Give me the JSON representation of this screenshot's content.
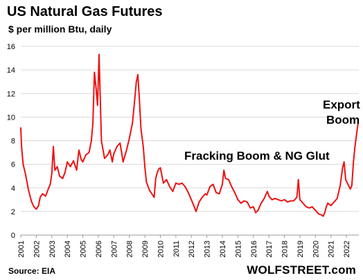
{
  "header": {
    "title": "US Natural Gas Futures",
    "subtitle": "$ per million Btu, daily"
  },
  "annotations": {
    "fracking": "Fracking Boom & NG Glut",
    "export_line1": "Export",
    "export_line2": "Boom"
  },
  "footer": {
    "source": "Source: EIA",
    "brand": "WOLFSTREET.com"
  },
  "colors": {
    "line": "#ee1111",
    "grid": "#d9d9d9",
    "axis": "#999999"
  },
  "chart_data": {
    "type": "line",
    "title": "US Natural Gas Futures",
    "subtitle": "$ per million Btu, daily",
    "xlabel": "",
    "ylabel": "",
    "xlim": [
      2001,
      2022.8
    ],
    "ylim": [
      0,
      16
    ],
    "yticks": [
      0,
      2,
      4,
      6,
      8,
      10,
      12,
      14,
      16
    ],
    "xticks": [
      "2001",
      "2002",
      "2003",
      "2004",
      "2005",
      "2006",
      "2007",
      "2008",
      "2009",
      "2010",
      "2011",
      "2012",
      "2013",
      "2014",
      "2015",
      "2016",
      "2017",
      "2018",
      "2019",
      "2020",
      "2021",
      "2022"
    ],
    "grid": "horizontal",
    "series": [
      {
        "color": "#ee1111",
        "x": [
          2001.0,
          2001.05,
          2001.15,
          2001.3,
          2001.5,
          2001.7,
          2001.85,
          2002.0,
          2002.15,
          2002.25,
          2002.4,
          2002.6,
          2002.8,
          2002.9,
          2003.0,
          2003.1,
          2003.2,
          2003.35,
          2003.5,
          2003.7,
          2003.85,
          2004.0,
          2004.2,
          2004.4,
          2004.6,
          2004.75,
          2004.9,
          2005.0,
          2005.2,
          2005.4,
          2005.55,
          2005.65,
          2005.75,
          2005.85,
          2005.95,
          2006.05,
          2006.2,
          2006.4,
          2006.6,
          2006.75,
          2006.9,
          2007.0,
          2007.2,
          2007.4,
          2007.6,
          2007.8,
          2008.0,
          2008.2,
          2008.35,
          2008.45,
          2008.55,
          2008.65,
          2008.75,
          2008.9,
          2009.0,
          2009.1,
          2009.3,
          2009.5,
          2009.6,
          2009.7,
          2009.8,
          2009.9,
          2010.0,
          2010.2,
          2010.4,
          2010.6,
          2010.8,
          2011.0,
          2011.2,
          2011.4,
          2011.6,
          2011.8,
          2012.0,
          2012.15,
          2012.3,
          2012.5,
          2012.7,
          2012.9,
          2013.0,
          2013.2,
          2013.4,
          2013.6,
          2013.8,
          2014.0,
          2014.1,
          2014.2,
          2014.4,
          2014.6,
          2014.8,
          2015.0,
          2015.2,
          2015.4,
          2015.6,
          2015.8,
          2016.0,
          2016.15,
          2016.3,
          2016.5,
          2016.7,
          2016.9,
          2017.0,
          2017.2,
          2017.4,
          2017.6,
          2017.8,
          2018.0,
          2018.2,
          2018.4,
          2018.6,
          2018.8,
          2018.9,
          2019.0,
          2019.2,
          2019.4,
          2019.6,
          2019.8,
          2020.0,
          2020.2,
          2020.4,
          2020.5,
          2020.6,
          2020.7,
          2020.8,
          2021.0,
          2021.2,
          2021.4,
          2021.6,
          2021.75,
          2021.85,
          2021.95,
          2022.1,
          2022.25,
          2022.35,
          2022.45,
          2022.55,
          2022.65,
          2022.75
        ],
        "y": [
          9.1,
          7.5,
          6.0,
          5.2,
          3.8,
          2.8,
          2.4,
          2.2,
          2.5,
          3.2,
          3.5,
          3.3,
          4.0,
          4.3,
          5.2,
          7.5,
          5.5,
          5.8,
          5.0,
          4.8,
          5.3,
          6.2,
          5.8,
          6.3,
          5.5,
          7.2,
          6.4,
          6.2,
          6.8,
          7.0,
          8.0,
          9.5,
          13.8,
          12.5,
          11.0,
          15.3,
          8.0,
          6.5,
          6.8,
          7.2,
          6.2,
          6.9,
          7.5,
          7.8,
          6.2,
          7.1,
          8.2,
          9.5,
          11.5,
          13.0,
          13.6,
          11.5,
          9.0,
          7.5,
          5.8,
          4.5,
          3.8,
          3.4,
          3.2,
          4.8,
          5.3,
          5.6,
          5.7,
          4.4,
          4.7,
          4.1,
          3.7,
          4.4,
          4.3,
          4.4,
          4.1,
          3.6,
          3.0,
          2.5,
          2.0,
          2.8,
          3.2,
          3.5,
          3.4,
          4.1,
          4.3,
          3.6,
          3.5,
          4.3,
          5.5,
          4.8,
          4.7,
          4.1,
          3.6,
          3.0,
          2.7,
          2.9,
          2.8,
          2.3,
          2.4,
          1.9,
          2.1,
          2.7,
          3.1,
          3.7,
          3.3,
          3.0,
          3.1,
          3.0,
          2.9,
          3.0,
          2.8,
          2.9,
          2.9,
          3.2,
          4.7,
          3.0,
          2.7,
          2.4,
          2.3,
          2.4,
          2.1,
          1.8,
          1.7,
          1.6,
          1.9,
          2.4,
          2.7,
          2.5,
          2.8,
          3.1,
          4.2,
          5.7,
          6.2,
          4.7,
          4.3,
          3.9,
          4.2,
          6.2,
          7.5,
          8.5,
          9.5
        ]
      }
    ]
  }
}
